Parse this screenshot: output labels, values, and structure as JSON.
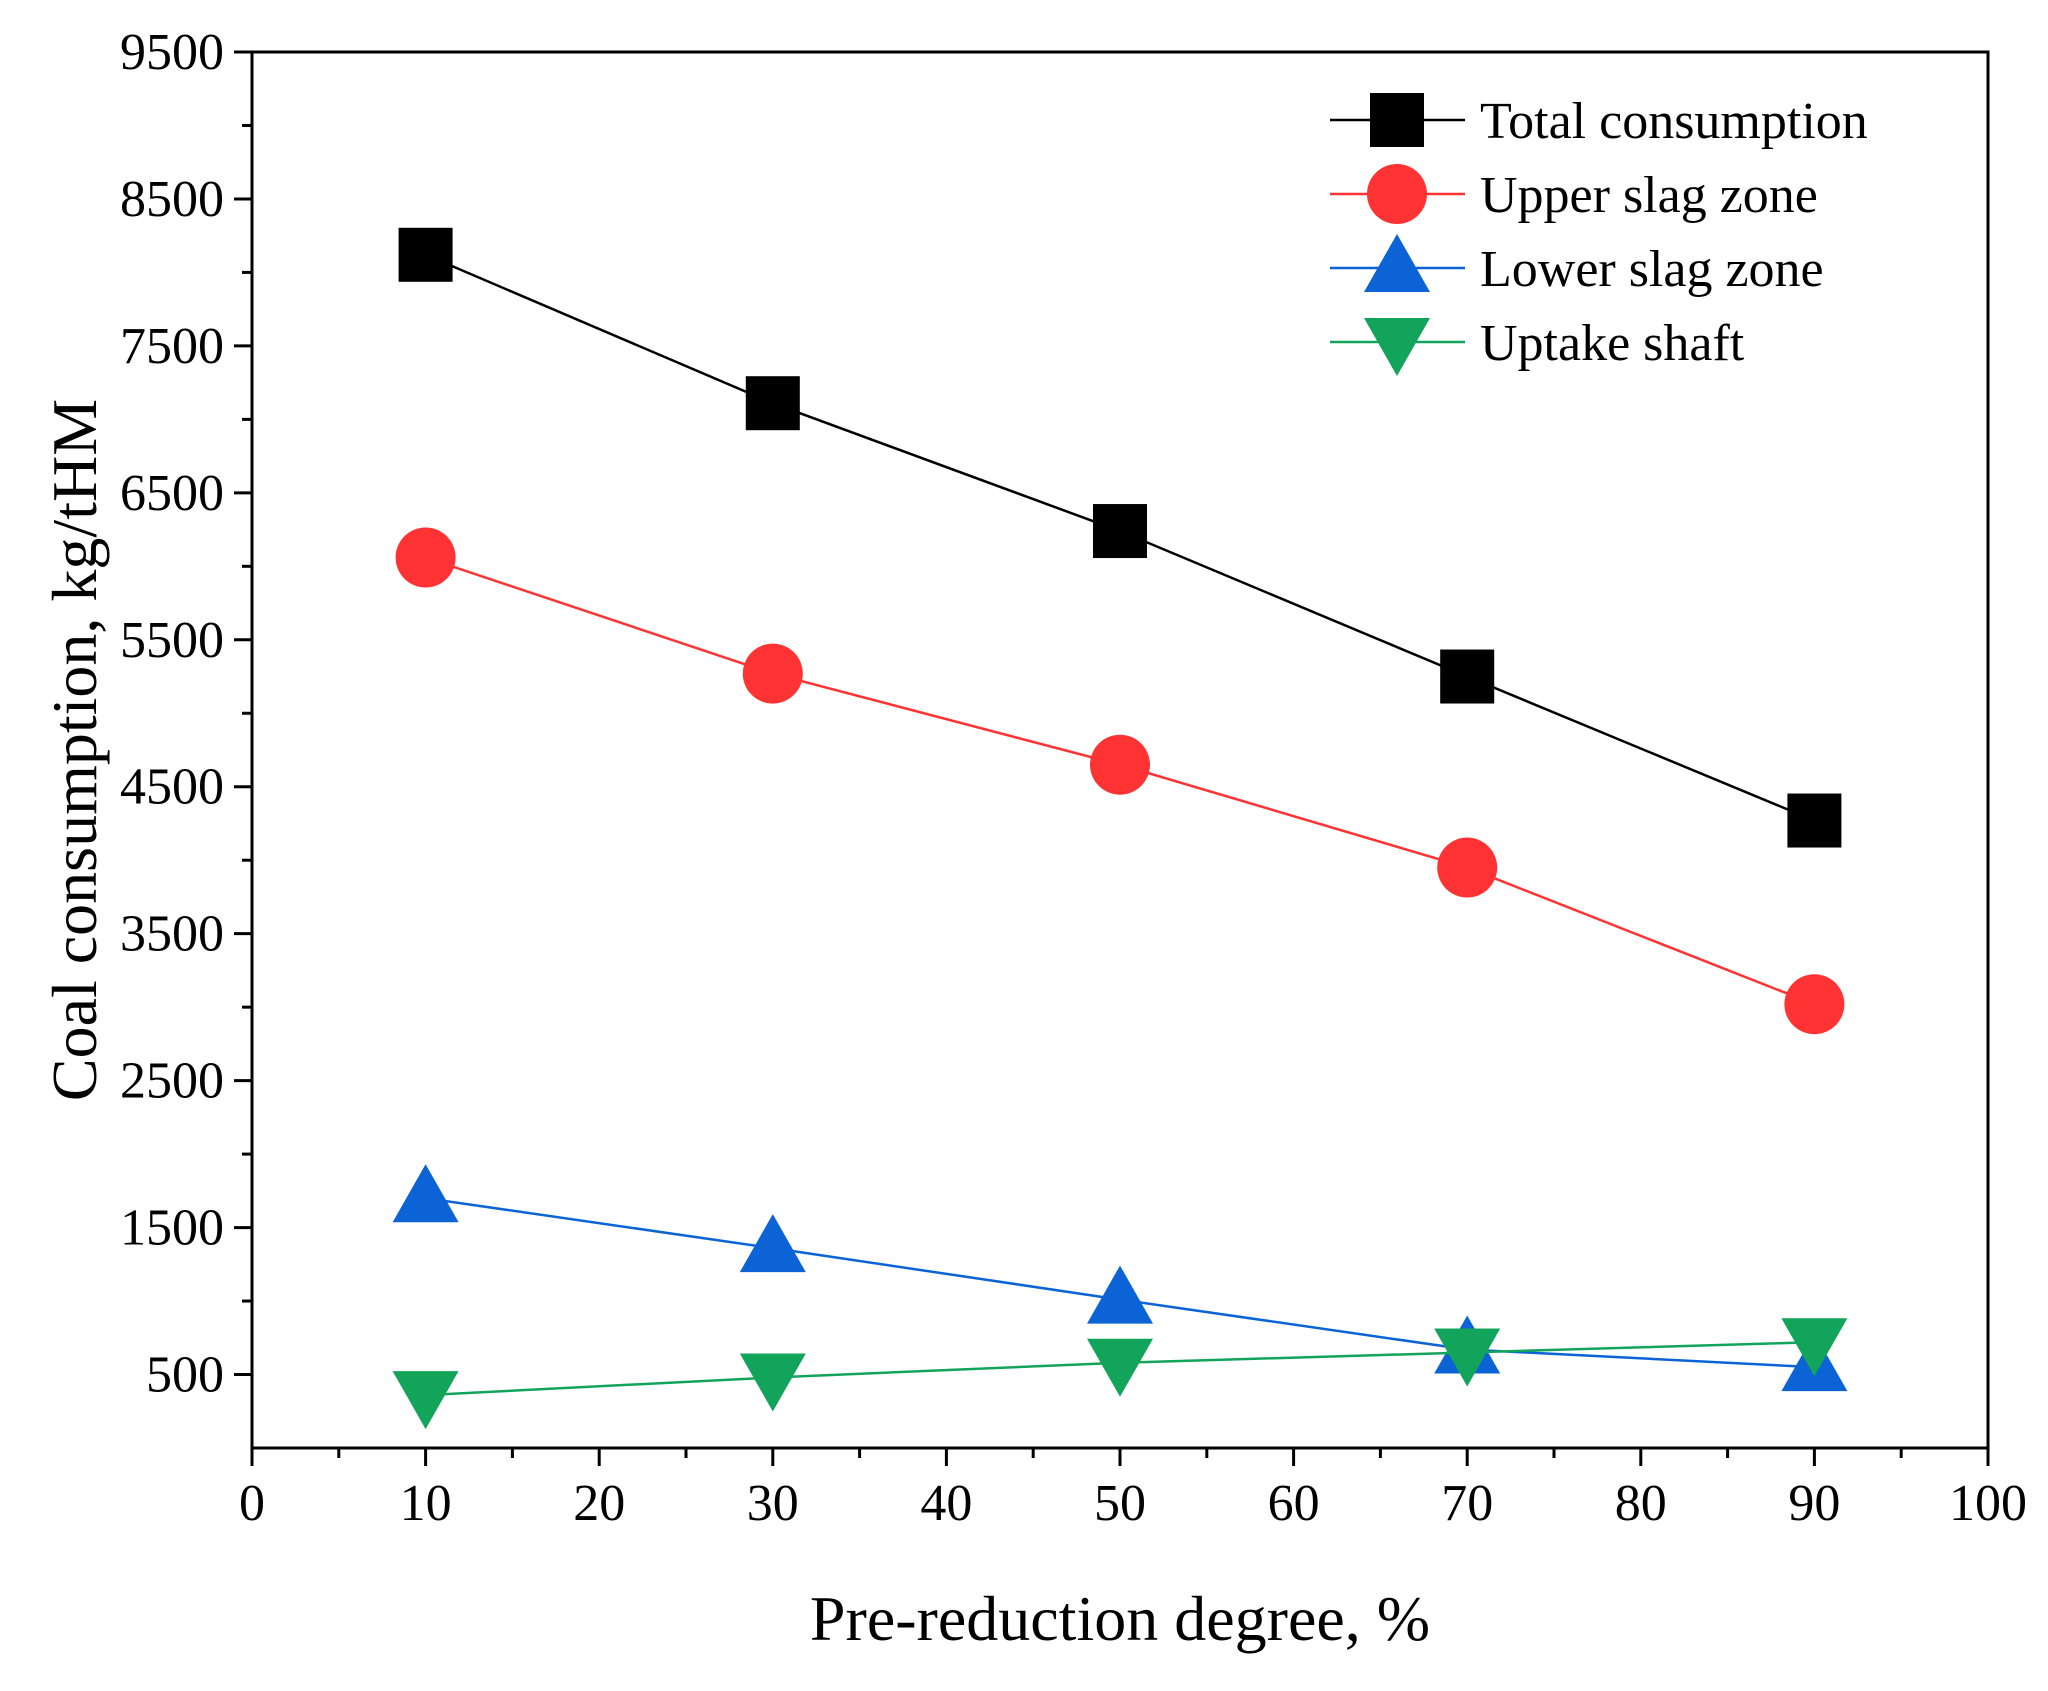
{
  "chart_data": {
    "type": "line",
    "xlabel": "Pre-reduction degree, %",
    "ylabel": "Coal consumption, kg/tHM",
    "xlim": [
      0,
      100
    ],
    "ylim": [
      0,
      9500
    ],
    "x_ticks": [
      0,
      10,
      20,
      30,
      40,
      50,
      60,
      70,
      80,
      90,
      100
    ],
    "y_ticks": [
      500,
      1500,
      2500,
      3500,
      4500,
      5500,
      6500,
      7500,
      8500,
      9500
    ],
    "grid": false,
    "legend_position": "top-right",
    "x": [
      10,
      30,
      50,
      70,
      90
    ],
    "series": [
      {
        "name": "Total consumption",
        "marker": "square",
        "color": "#000000",
        "values": [
          8120,
          7110,
          6240,
          5250,
          4270
        ]
      },
      {
        "name": "Upper slag zone",
        "marker": "circle",
        "color": "#ff3333",
        "values": [
          6060,
          5270,
          4650,
          3950,
          3020
        ]
      },
      {
        "name": "Lower slag zone",
        "marker": "triangle-up",
        "color": "#0b63d6",
        "values": [
          1700,
          1360,
          1010,
          670,
          550
        ]
      },
      {
        "name": "Uptake shaft",
        "marker": "triangle-down",
        "color": "#12a45a",
        "values": [
          360,
          480,
          580,
          650,
          720
        ]
      }
    ]
  }
}
